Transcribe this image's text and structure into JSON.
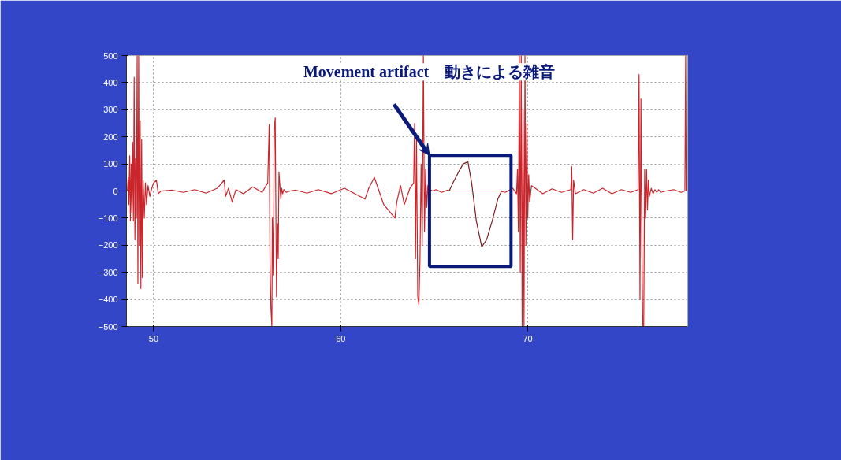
{
  "chart_data": {
    "type": "line",
    "xlim": [
      48.55,
      78.55
    ],
    "ylim": [
      -500,
      500
    ],
    "xticks": [
      50,
      60,
      70
    ],
    "yticks": [
      -500,
      -400,
      -300,
      -200,
      -100,
      0,
      100,
      200,
      300,
      400,
      500
    ],
    "grid": true,
    "marker": "none",
    "line_style": "solid",
    "series": [
      {
        "color": "#c8262c",
        "x": [
          48.6,
          48.64,
          48.68,
          48.72,
          48.76,
          48.8,
          48.84,
          48.88,
          48.92,
          48.96,
          49.0,
          49.04,
          49.08,
          49.12,
          49.16,
          49.2,
          49.24,
          49.28,
          49.32,
          49.36,
          49.4,
          49.44,
          49.5,
          49.56,
          49.62,
          49.7,
          49.8,
          49.9,
          50.0,
          50.15,
          50.25,
          50.4,
          51.0,
          51.6,
          52.2,
          52.8,
          53.4,
          53.77,
          53.85,
          54.0,
          54.2,
          54.4,
          54.8,
          55.3,
          55.8,
          56.1,
          56.18,
          56.22,
          56.27,
          56.32,
          56.35,
          56.4,
          56.45,
          56.5,
          56.57,
          56.62,
          56.66,
          56.7,
          56.75,
          56.8,
          56.85,
          56.9,
          56.96,
          57.1,
          57.3,
          57.6,
          58.2,
          58.8,
          59.5,
          60.2,
          60.9,
          61.3,
          61.5,
          61.8,
          62.3,
          62.9,
          63.0,
          63.2,
          63.4,
          63.7,
          63.9,
          63.95,
          64.0,
          64.05,
          64.12,
          64.18,
          64.24,
          64.3,
          64.36,
          64.42,
          64.48,
          64.54,
          64.6,
          64.66,
          64.72,
          64.8,
          64.9,
          65.1,
          65.4,
          65.7,
          65.9,
          66.3,
          67.0,
          67.8,
          68.5,
          68.8,
          69.2,
          69.4,
          69.45,
          69.5,
          69.55,
          69.6,
          69.65,
          69.7,
          69.75,
          69.8,
          69.85,
          69.9,
          69.95,
          70.0,
          70.05,
          70.1,
          70.2,
          70.4,
          70.8,
          71.3,
          71.8,
          72.3,
          72.35,
          72.4,
          72.45,
          72.55,
          73.0,
          73.5,
          74.0,
          74.5,
          75.0,
          75.5,
          75.9,
          75.95,
          76.0,
          76.05,
          76.1,
          76.15,
          76.2,
          76.25,
          76.3,
          76.35,
          76.4,
          76.45,
          76.5,
          76.6,
          76.7,
          76.8,
          76.9,
          77.0,
          77.1,
          77.4,
          77.8,
          78.2,
          78.4,
          78.44,
          78.47
        ],
        "values": [
          0,
          50,
          -50,
          130,
          -110,
          100,
          -80,
          180,
          -110,
          420,
          -180,
          120,
          -100,
          500,
          -340,
          500,
          -200,
          260,
          -360,
          190,
          -320,
          40,
          -100,
          30,
          -50,
          20,
          -20,
          10,
          30,
          40,
          -10,
          0,
          3,
          -5,
          5,
          -8,
          10,
          40,
          -20,
          10,
          -40,
          5,
          -10,
          15,
          -5,
          30,
          245,
          -250,
          -430,
          -500,
          -100,
          -310,
          230,
          270,
          -390,
          -120,
          -250,
          70,
          20,
          -30,
          10,
          -10,
          5,
          -5,
          0,
          3,
          -8,
          5,
          -10,
          10,
          -15,
          -30,
          10,
          50,
          -50,
          -100,
          -40,
          20,
          -50,
          10,
          30,
          250,
          -250,
          200,
          -390,
          -420,
          -250,
          100,
          -200,
          500,
          -150,
          80,
          -60,
          20,
          -10,
          5,
          0,
          5,
          -5,
          3,
          0,
          0,
          0,
          0,
          0,
          -5,
          10,
          -10,
          80,
          -150,
          500,
          -300,
          500,
          -500,
          300,
          -500,
          500,
          -200,
          250,
          -100,
          60,
          -40,
          20,
          10,
          -10,
          8,
          -5,
          5,
          90,
          -180,
          40,
          -10,
          5,
          -8,
          10,
          -10,
          5,
          -5,
          5,
          430,
          -400,
          340,
          -200,
          -500,
          -500,
          80,
          -100,
          80,
          -70,
          40,
          -20,
          10,
          -10,
          5,
          -5,
          5,
          -5,
          0,
          5,
          -5,
          0,
          500,
          0
        ]
      },
      {
        "color": "#7b1f1f",
        "x": [
          65.8,
          66.0,
          66.3,
          66.55,
          66.8,
          67.0,
          67.25,
          67.54,
          67.8,
          68.1,
          68.4,
          68.6
        ],
        "values": [
          0,
          30,
          70,
          100,
          108,
          30,
          -110,
          -206,
          -180,
          -110,
          -30,
          0
        ]
      }
    ],
    "annotations": [
      "Movement artifact　動きによる雑音"
    ]
  }
}
